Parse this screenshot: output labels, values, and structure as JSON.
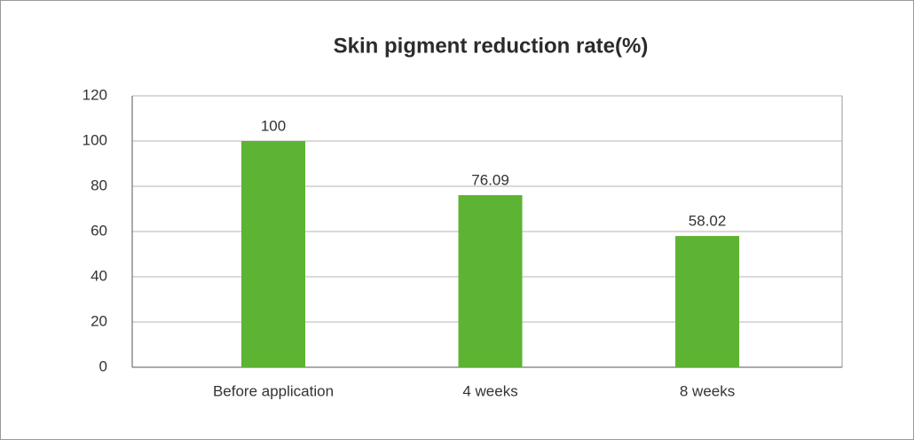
{
  "chart_data": {
    "type": "bar",
    "title": "Skin pigment reduction rate(%)",
    "categories": [
      "Before application",
      "4 weeks",
      "8 weeks"
    ],
    "values": [
      100,
      76.09,
      58.02
    ],
    "color": "#5db332",
    "ylim": [
      0,
      120
    ],
    "yticks": [
      0,
      20,
      40,
      60,
      80,
      100,
      120
    ],
    "grid": true
  }
}
